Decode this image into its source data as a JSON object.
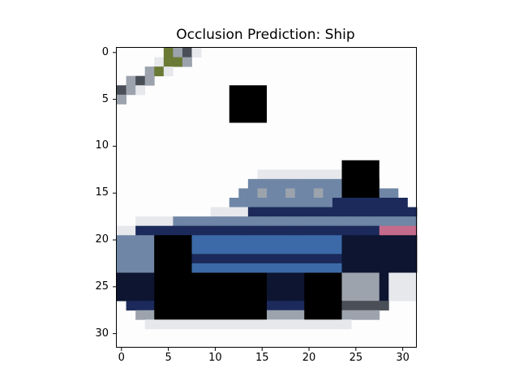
{
  "title": "Occlusion Prediction: Ship",
  "image": {
    "rows": 32,
    "cols": 32,
    "description_of_content": "",
    "palette": {
      "white": "#fdfdfd",
      "light_gray": "#e6e8ec",
      "gray": "#9ca3ad",
      "dark_gray": "#4a4f57",
      "navy": "#1b2a5a",
      "deep_navy": "#0d1530",
      "blue": "#3c6aa8",
      "steel": "#6f86a6",
      "olive": "#6b7a35",
      "black": "#000000",
      "pink": "#c46a8a"
    },
    "occlusion_patches": [
      {
        "row": 4,
        "col": 12,
        "h": 4,
        "w": 4
      },
      {
        "row": 12,
        "col": 24,
        "h": 4,
        "w": 4
      },
      {
        "row": 20,
        "col": 4,
        "h": 9,
        "w": 4
      },
      {
        "row": 24,
        "col": 8,
        "h": 5,
        "w": 8
      },
      {
        "row": 24,
        "col": 20,
        "h": 5,
        "w": 4
      }
    ]
  },
  "axes": {
    "xticks": [
      0,
      5,
      10,
      15,
      20,
      25,
      30
    ],
    "yticks": [
      0,
      5,
      10,
      15,
      20,
      25,
      30
    ]
  }
}
